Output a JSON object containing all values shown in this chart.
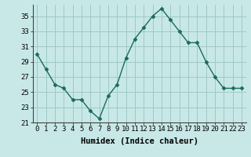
{
  "x": [
    0,
    1,
    2,
    3,
    4,
    5,
    6,
    7,
    8,
    9,
    10,
    11,
    12,
    13,
    14,
    15,
    16,
    17,
    18,
    19,
    20,
    21,
    22,
    23
  ],
  "y": [
    30,
    28,
    26,
    25.5,
    24,
    24,
    22.5,
    21.5,
    24.5,
    26,
    29.5,
    32,
    33.5,
    35,
    36,
    34.5,
    33,
    31.5,
    31.5,
    29,
    27,
    25.5,
    25.5,
    25.5
  ],
  "line_color": "#1a6b5a",
  "marker": "D",
  "marker_size": 2.5,
  "bg_color": "#c8e8e8",
  "grid_color": "#a0c8c8",
  "xlabel": "Humidex (Indice chaleur)",
  "ylim": [
    21,
    36.5
  ],
  "xlim": [
    -0.5,
    23.5
  ],
  "yticks": [
    21,
    23,
    25,
    27,
    29,
    31,
    33,
    35
  ],
  "xtick_labels": [
    "0",
    "1",
    "2",
    "3",
    "4",
    "5",
    "6",
    "7",
    "8",
    "9",
    "10",
    "11",
    "12",
    "13",
    "14",
    "15",
    "16",
    "17",
    "18",
    "19",
    "20",
    "21",
    "22",
    "23"
  ],
  "xlabel_fontsize": 7.5,
  "tick_fontsize": 6.5
}
